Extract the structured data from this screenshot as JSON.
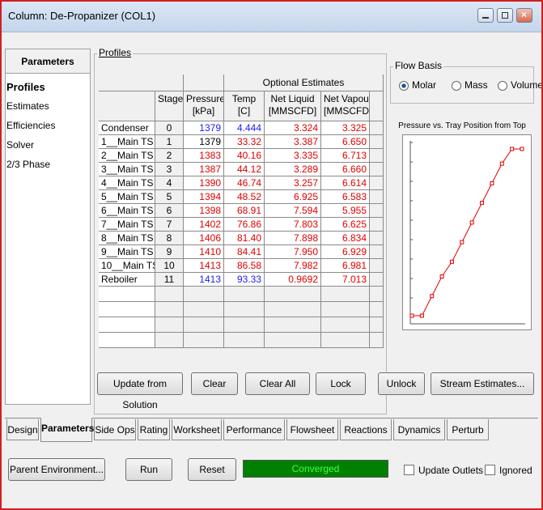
{
  "window": {
    "title": "Column: De-Propanizer (COL1)"
  },
  "nav": {
    "heading": "Parameters",
    "items": [
      "Profiles",
      "Estimates",
      "Efficiencies",
      "Solver",
      "2/3 Phase"
    ],
    "active": 0
  },
  "profiles": {
    "label": "Profiles",
    "table": {
      "group_header": "Optional Estimates",
      "columns": [
        [
          "Stage"
        ],
        [
          "Pressure",
          "[kPa]"
        ],
        [
          "Temp",
          "[C]"
        ],
        [
          "Net Liquid",
          "[MMSCFD]"
        ],
        [
          "Net Vapour",
          "[MMSCFD]"
        ]
      ],
      "rows": [
        {
          "name": "Condenser",
          "stage": "0",
          "pressure": "1379",
          "temp": "4.444",
          "net_liquid": "3.324",
          "net_vapour": "3.325",
          "colors": [
            "#1a1aff",
            "#1a1aff",
            "#e00000",
            "#e00000"
          ]
        },
        {
          "name": "1__Main TS",
          "stage": "1",
          "pressure": "1379",
          "temp": "33.32",
          "net_liquid": "3.387",
          "net_vapour": "6.650",
          "colors": [
            "#000000",
            "#e00000",
            "#e00000",
            "#e00000"
          ]
        },
        {
          "name": "2__Main TS",
          "stage": "2",
          "pressure": "1383",
          "temp": "40.16",
          "net_liquid": "3.335",
          "net_vapour": "6.713",
          "colors": [
            "#e00000",
            "#e00000",
            "#e00000",
            "#e00000"
          ]
        },
        {
          "name": "3__Main TS",
          "stage": "3",
          "pressure": "1387",
          "temp": "44.12",
          "net_liquid": "3.289",
          "net_vapour": "6.660",
          "colors": [
            "#e00000",
            "#e00000",
            "#e00000",
            "#e00000"
          ]
        },
        {
          "name": "4__Main TS",
          "stage": "4",
          "pressure": "1390",
          "temp": "46.74",
          "net_liquid": "3.257",
          "net_vapour": "6.614",
          "colors": [
            "#e00000",
            "#e00000",
            "#e00000",
            "#e00000"
          ]
        },
        {
          "name": "5__Main TS",
          "stage": "5",
          "pressure": "1394",
          "temp": "48.52",
          "net_liquid": "6.925",
          "net_vapour": "6.583",
          "colors": [
            "#e00000",
            "#e00000",
            "#e00000",
            "#e00000"
          ]
        },
        {
          "name": "6__Main TS",
          "stage": "6",
          "pressure": "1398",
          "temp": "68.91",
          "net_liquid": "7.594",
          "net_vapour": "5.955",
          "colors": [
            "#e00000",
            "#e00000",
            "#e00000",
            "#e00000"
          ]
        },
        {
          "name": "7__Main TS",
          "stage": "7",
          "pressure": "1402",
          "temp": "76.86",
          "net_liquid": "7.803",
          "net_vapour": "6.625",
          "colors": [
            "#e00000",
            "#e00000",
            "#e00000",
            "#e00000"
          ]
        },
        {
          "name": "8__Main TS",
          "stage": "8",
          "pressure": "1406",
          "temp": "81.40",
          "net_liquid": "7.898",
          "net_vapour": "6.834",
          "colors": [
            "#e00000",
            "#e00000",
            "#e00000",
            "#e00000"
          ]
        },
        {
          "name": "9__Main TS",
          "stage": "9",
          "pressure": "1410",
          "temp": "84.41",
          "net_liquid": "7.950",
          "net_vapour": "6.929",
          "colors": [
            "#e00000",
            "#e00000",
            "#e00000",
            "#e00000"
          ]
        },
        {
          "name": "10__Main TS",
          "stage": "10",
          "pressure": "1413",
          "temp": "86.58",
          "net_liquid": "7.982",
          "net_vapour": "6.981",
          "colors": [
            "#e00000",
            "#e00000",
            "#e00000",
            "#e00000"
          ]
        },
        {
          "name": "Reboiler",
          "stage": "11",
          "pressure": "1413",
          "temp": "93.33",
          "net_liquid": "0.9692",
          "net_vapour": "7.013",
          "colors": [
            "#1a1aff",
            "#1a1aff",
            "#e00000",
            "#e00000"
          ]
        }
      ]
    },
    "buttons": [
      "Update from Solution",
      "Clear",
      "Clear All",
      "Lock",
      "Unlock",
      "Stream Estimates..."
    ]
  },
  "flow_basis": {
    "label": "Flow Basis",
    "options": [
      "Molar",
      "Mass",
      "Volume"
    ],
    "selected": 0
  },
  "chart": {
    "title": "Pressure vs. Tray Position from Top",
    "color": "#e00000"
  },
  "tabs": {
    "items": [
      "Design",
      "Parameters",
      "Side Ops",
      "Rating",
      "Worksheet",
      "Performance",
      "Flowsheet",
      "Reactions",
      "Dynamics",
      "Perturb"
    ],
    "active": 1
  },
  "footer": {
    "buttons": [
      "Parent Environment...",
      "Run",
      "Reset"
    ],
    "status": "Converged",
    "checkboxes": [
      "Update Outlets",
      "Ignored"
    ]
  }
}
